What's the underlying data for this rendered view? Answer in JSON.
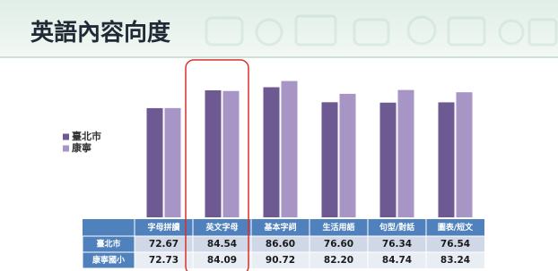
{
  "chart_data": {
    "type": "bar",
    "title": "英語內容向度",
    "categories": [
      "字母拼讀",
      "英文字母",
      "基本字詞",
      "生活用語",
      "句型/對話",
      "圖表/短文"
    ],
    "series": [
      {
        "name": "臺北市",
        "color": "#6e5a93",
        "values": [
          72.67,
          84.54,
          86.6,
          76.6,
          76.34,
          76.54
        ],
        "value_labels": [
          "72.67",
          "84.54",
          "86.60",
          "76.60",
          "76.34",
          "76.54"
        ]
      },
      {
        "name": "康寧",
        "color": "#a796c5",
        "values": [
          72.73,
          84.09,
          90.72,
          82.2,
          84.74,
          83.24
        ],
        "value_labels": [
          "72.73",
          "84.09",
          "90.72",
          "82.20",
          "84.74",
          "83.24"
        ]
      }
    ],
    "table_row_labels": [
      "臺北市",
      "康寧國小"
    ]
  }
}
